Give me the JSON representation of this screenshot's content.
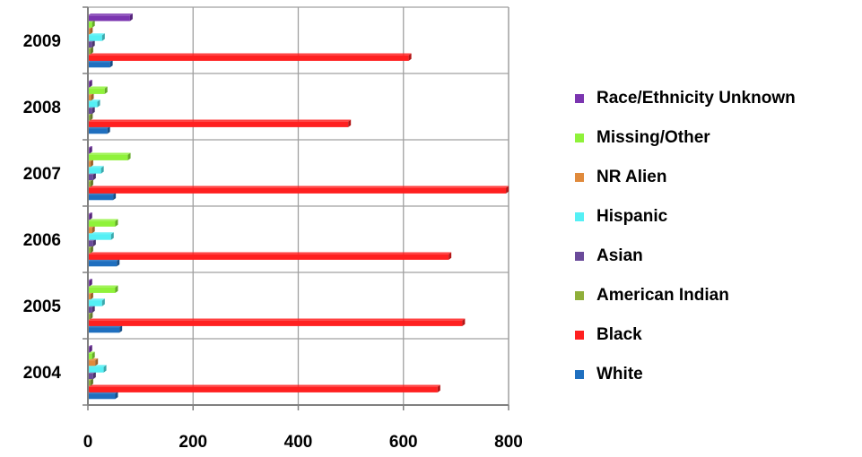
{
  "chart_data": {
    "type": "bar",
    "orientation": "horizontal",
    "categories": [
      "2004",
      "2005",
      "2006",
      "2007",
      "2008",
      "2009"
    ],
    "series": [
      {
        "name": "White",
        "color": "#1f6fbf",
        "values": [
          52,
          60,
          55,
          48,
          37,
          42
        ]
      },
      {
        "name": "Black",
        "color": "#ff2020",
        "values": [
          665,
          712,
          686,
          795,
          495,
          610
        ]
      },
      {
        "name": "American Indian",
        "color": "#8faf3a",
        "values": [
          5,
          4,
          5,
          5,
          4,
          5
        ]
      },
      {
        "name": "Asian",
        "color": "#6a4a9a",
        "values": [
          10,
          8,
          10,
          10,
          8,
          8
        ]
      },
      {
        "name": "Hispanic",
        "color": "#55f0f5",
        "values": [
          30,
          27,
          44,
          25,
          18,
          27
        ]
      },
      {
        "name": "NR Alien",
        "color": "#e08a3c",
        "values": [
          14,
          5,
          8,
          5,
          6,
          4
        ]
      },
      {
        "name": "Missing/Other",
        "color": "#8ff23a",
        "values": [
          8,
          52,
          52,
          76,
          32,
          8
        ]
      },
      {
        "name": "Race/Ethnicity Unknown",
        "color": "#7b35b0",
        "values": [
          3,
          3,
          3,
          3,
          3,
          80
        ]
      }
    ],
    "xlim": [
      0,
      800
    ],
    "xticks": [
      0,
      200,
      400,
      600,
      800
    ],
    "grid": true,
    "legend_position": "right"
  }
}
